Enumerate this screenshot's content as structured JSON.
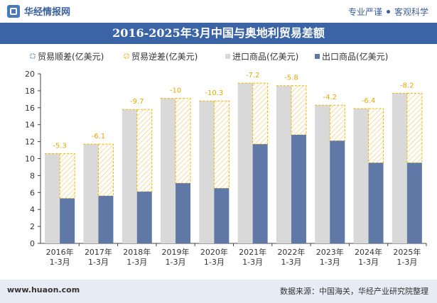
{
  "header": {
    "brand": "华经情报网",
    "tag1": "专业严谨",
    "tag2": "客观科学"
  },
  "footer": {
    "website": "www.huaon.com",
    "source": "数据来源：中国海关，华经产业研究院整理"
  },
  "colors": {
    "import": "#d9d9d9",
    "export": "#5f78a6",
    "deficit": "#f0b400",
    "title_bg": "#3b64a7"
  },
  "chart_data": {
    "type": "bar",
    "title": "2016-2025年3月中国与奥地利贸易差额",
    "categories": [
      "2016年\n1-3月",
      "2017年\n1-3月",
      "2018年\n1-3月",
      "2019年\n1-3月",
      "2020年\n1-3月",
      "2021年\n1-3月",
      "2022年\n1-3月",
      "2023年\n1-3月",
      "2024年\n1-3月",
      "2025年\n1-3月"
    ],
    "ylim": [
      0,
      20
    ],
    "yticks": [
      0,
      2,
      4,
      6,
      8,
      10,
      12,
      14,
      16,
      18,
      20
    ],
    "legend_position": "top",
    "grid": false,
    "series": [
      {
        "name": "贸易顺差(亿美元)",
        "values": [
          null,
          null,
          null,
          null,
          null,
          null,
          null,
          null,
          null,
          null
        ]
      },
      {
        "name": "贸易逆差(亿美元)",
        "values": [
          -5.3,
          -6.1,
          -9.7,
          -10,
          -10.3,
          -7.2,
          -5.8,
          -4.2,
          -6.4,
          -8.2
        ]
      },
      {
        "name": "进口商品(亿美元)",
        "values": [
          10.6,
          11.7,
          15.8,
          17.1,
          16.8,
          18.9,
          18.6,
          16.3,
          15.9,
          17.7
        ]
      },
      {
        "name": "出口商品(亿美元)",
        "values": [
          5.3,
          5.6,
          6.1,
          7.1,
          6.5,
          11.7,
          12.8,
          12.1,
          9.5,
          9.5
        ]
      }
    ],
    "data_labels": [
      "-5.3",
      "-6.1",
      "-9.7",
      "-10",
      "-10.3",
      "-7.2",
      "-5.8",
      "-4.2",
      "-6.4",
      "-8.2"
    ]
  }
}
